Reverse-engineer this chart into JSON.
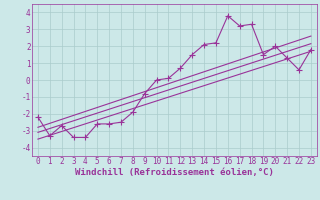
{
  "title": "",
  "xlabel": "Windchill (Refroidissement éolien,°C)",
  "ylabel": "",
  "background_color": "#cce8e8",
  "grid_color": "#aacccc",
  "line_color": "#993399",
  "x_data": [
    0,
    1,
    2,
    3,
    4,
    5,
    6,
    7,
    8,
    9,
    10,
    11,
    12,
    13,
    14,
    15,
    16,
    17,
    18,
    19,
    20,
    21,
    22,
    23
  ],
  "y_main": [
    -2.2,
    -3.3,
    -2.7,
    -3.4,
    -3.4,
    -2.6,
    -2.6,
    -2.5,
    -1.9,
    -0.8,
    0.0,
    0.1,
    0.7,
    1.5,
    2.1,
    2.2,
    3.8,
    3.2,
    3.3,
    1.5,
    2.0,
    1.3,
    0.6,
    1.8
  ],
  "reg_line1_x": [
    0,
    23
  ],
  "reg_line1_y": [
    -3.5,
    1.7
  ],
  "reg_line2_x": [
    0,
    23
  ],
  "reg_line2_y": [
    -2.8,
    2.6
  ],
  "reg_line3_x": [
    0,
    23
  ],
  "reg_line3_y": [
    -3.1,
    2.15
  ],
  "xlim": [
    -0.5,
    23.5
  ],
  "ylim": [
    -4.5,
    4.5
  ],
  "yticks": [
    -4,
    -3,
    -2,
    -1,
    0,
    1,
    2,
    3,
    4
  ],
  "xticks": [
    0,
    1,
    2,
    3,
    4,
    5,
    6,
    7,
    8,
    9,
    10,
    11,
    12,
    13,
    14,
    15,
    16,
    17,
    18,
    19,
    20,
    21,
    22,
    23
  ],
  "markersize": 4,
  "linewidth": 0.8,
  "xlabel_fontsize": 6.5,
  "tick_fontsize": 5.5
}
